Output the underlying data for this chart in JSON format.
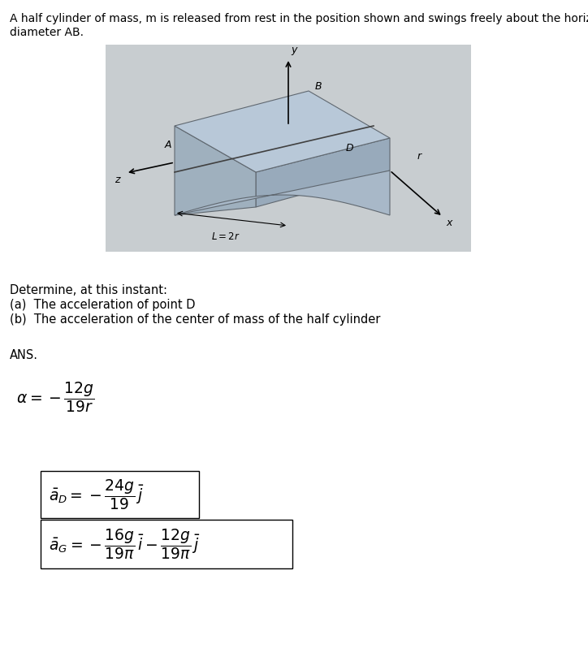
{
  "title_line1": "A half cylinder of mass, m is released from rest in the position shown and swings freely about the horizontal",
  "title_line2": "diameter AB.",
  "problem_text_line1": "Determine, at this instant:",
  "problem_text_line2": "(a)  The acceleration of point D",
  "problem_text_line3": "(b)  The acceleration of the center of mass of the half cylinder",
  "ans_label": "ANS.",
  "bg_color": "#ffffff",
  "text_color": "#000000",
  "box_color": "#000000",
  "diagram_bg": "#c8cdd0",
  "cyl_top_color": "#b8c8d8",
  "cyl_side_color": "#98aabb",
  "cyl_front_color": "#a8b8c8",
  "cyl_edge_color": "#606870",
  "font_size_title": 10.0,
  "font_size_body": 10.5,
  "font_size_eq": 13.5,
  "fig_width": 7.24,
  "fig_height": 7.98,
  "dpi": 100
}
